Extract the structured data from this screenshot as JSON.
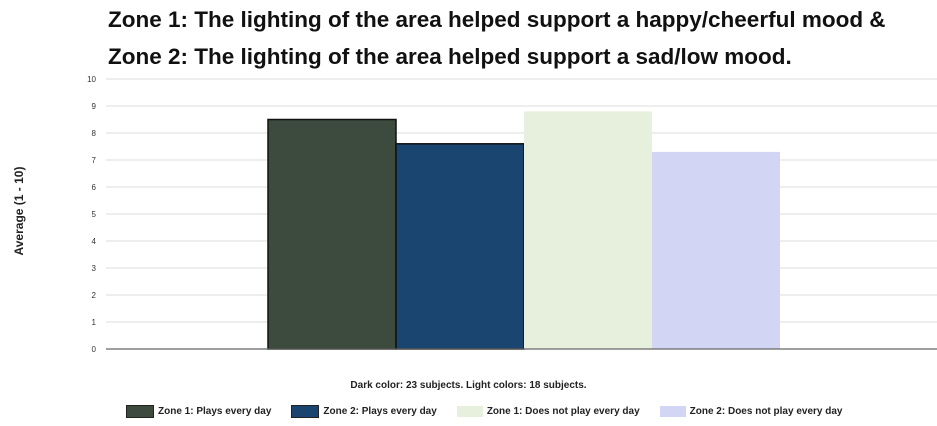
{
  "chart_data": {
    "type": "bar",
    "title_lines": [
      "Zone 1: The lighting of the area helped support a happy/cheerful mood &",
      "Zone 2: The lighting of the area helped support a sad/low mood."
    ],
    "ylabel": "Average (1 - 10)",
    "ylim": [
      0,
      10
    ],
    "yticks": [
      "0",
      "1",
      "2",
      "3",
      "4",
      "5",
      "6",
      "7",
      "8",
      "9",
      "10"
    ],
    "grid": true,
    "legend_position": "bottom",
    "note": "Dark color: 23 subjects. Light colors: 18 subjects.",
    "series": [
      {
        "name": "Zone 1: Plays every day",
        "value": 8.5,
        "color": "#3d4a3e"
      },
      {
        "name": "Zone 2: Plays every day",
        "value": 7.6,
        "color": "#1a4570"
      },
      {
        "name": "Zone 1: Does not play every day",
        "value": 8.8,
        "color": "#e6f0dc"
      },
      {
        "name": "Zone 2: Does not play every day",
        "value": 7.3,
        "color": "#d2d6f4"
      }
    ]
  }
}
